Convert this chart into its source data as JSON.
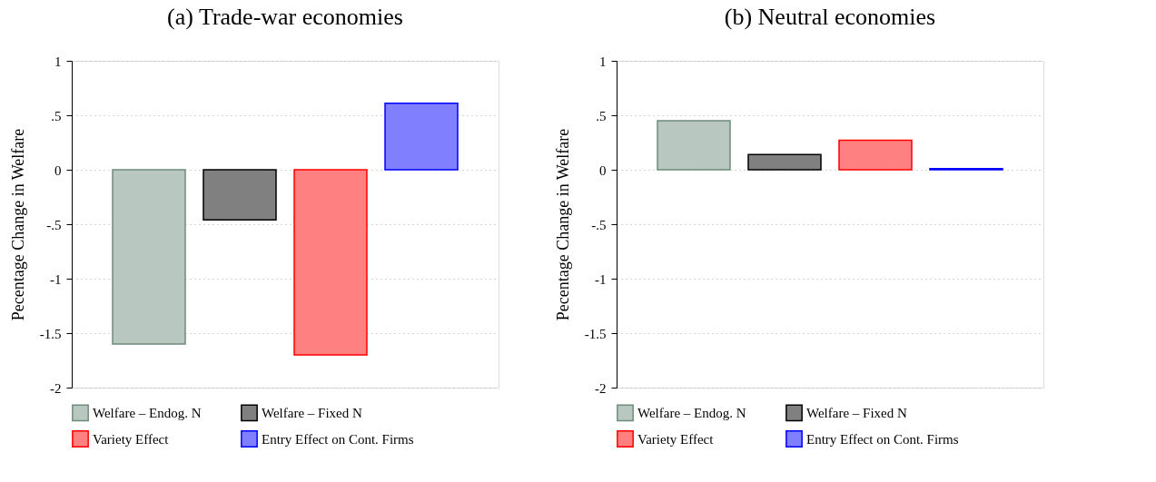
{
  "chart_data": [
    {
      "type": "bar",
      "title": "(a) Trade-war economies",
      "ylabel": "Pecentage Change in Welfare",
      "categories": [
        null,
        null,
        null,
        null
      ],
      "series": [
        {
          "name": "Welfare – Endog. N",
          "color": "#b8c8c0",
          "values": [
            -1.6,
            null,
            null,
            null
          ]
        },
        {
          "name": "Welfare – Fixed N",
          "color": "#808080",
          "values": [
            null,
            -0.46,
            null,
            null
          ]
        },
        {
          "name": "Variety Effect",
          "color": "#ff8080",
          "values": [
            null,
            null,
            -1.7,
            null
          ]
        },
        {
          "name": "Entry Effect on Cont. Firms",
          "color": "#8080ff",
          "values": [
            null,
            null,
            null,
            0.61
          ]
        }
      ],
      "ylim": [
        -2,
        1
      ],
      "yticks": [
        {
          "value": -2,
          "label": "-2"
        },
        {
          "value": -1.5,
          "label": "-1.5"
        },
        {
          "value": -1,
          "label": "-1"
        },
        {
          "value": -0.5,
          "label": "-.5"
        },
        0,
        {
          "value": 0.5,
          "label": ".5"
        },
        1
      ],
      "grid": "y",
      "legend": "bottom",
      "tick_labels": "y"
    },
    {
      "type": "bar",
      "title": "(b) Neutral economies",
      "ylabel": "Pecentage Change in Welfare",
      "categories": [
        null,
        null,
        null,
        null
      ],
      "series": [
        {
          "name": "Welfare – Endog. N",
          "color": "#b8c8c0",
          "values": [
            0.45,
            null,
            null,
            null
          ]
        },
        {
          "name": "Welfare – Fixed N",
          "color": "#808080",
          "values": [
            null,
            0.14,
            null,
            null
          ]
        },
        {
          "name": "Variety Effect",
          "color": "#ff8080",
          "values": [
            null,
            null,
            0.27,
            null
          ]
        },
        {
          "name": "Entry Effect on Cont. Firms",
          "color": "#8080ff",
          "values": [
            null,
            null,
            null,
            0.01
          ]
        }
      ],
      "ylim": [
        -2,
        1
      ],
      "yticks": [
        {
          "value": -2,
          "label": "-2"
        },
        {
          "value": -1.5,
          "label": "-1.5"
        },
        {
          "value": -1,
          "label": "-1"
        },
        {
          "value": -0.5,
          "label": "-.5"
        },
        0,
        {
          "value": 0.5,
          "label": ".5"
        },
        1
      ],
      "grid": "y",
      "legend": "bottom",
      "tick_labels": "y"
    }
  ]
}
